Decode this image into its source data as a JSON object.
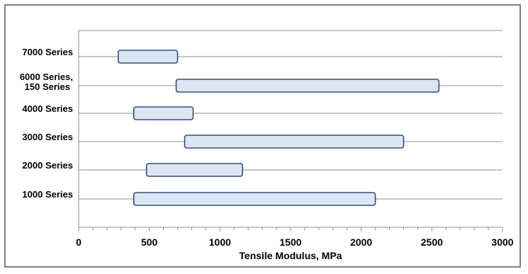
{
  "chart_data": {
    "type": "bar",
    "orientation": "horizontal-range",
    "categories": [
      "7000 Series",
      "6000 Series, 150 Series",
      "4000 Series",
      "3000 Series",
      "2000 Series",
      "1000 Series"
    ],
    "category_label_lines": [
      [
        "7000 Series"
      ],
      [
        "6000 Series,",
        "150 Series"
      ],
      [
        "4000 Series"
      ],
      [
        "3000 Series"
      ],
      [
        "2000 Series"
      ],
      [
        "1000 Series"
      ]
    ],
    "ranges": [
      {
        "category": "7000 Series",
        "min": 280,
        "max": 700
      },
      {
        "category": "6000 Series, 150 Series",
        "min": 690,
        "max": 2550
      },
      {
        "category": "4000 Series",
        "min": 390,
        "max": 810
      },
      {
        "category": "3000 Series",
        "min": 750,
        "max": 2300
      },
      {
        "category": "2000 Series",
        "min": 480,
        "max": 1160
      },
      {
        "category": "1000 Series",
        "min": 390,
        "max": 2100
      }
    ],
    "xlabel": "Tensile Modulus, MPa",
    "xlim": [
      0,
      3000
    ],
    "xticks": [
      0,
      500,
      1000,
      1500,
      2000,
      2500,
      3000
    ],
    "grid": "horizontal",
    "legend": "none",
    "colors": {
      "bar_fill": "#dce6f2",
      "bar_stroke": "#2e4f7f",
      "grid": "#8c8c8c",
      "axis": "#8c8c8c",
      "frame": "#7f7f7f"
    }
  }
}
